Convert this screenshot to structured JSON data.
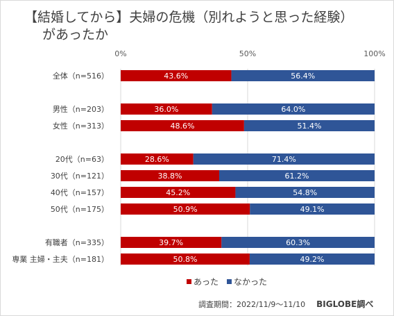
{
  "title_line1": "【結婚してから】夫婦の危機（別れようと思った経験）",
  "title_line2": "があったか",
  "survey_period": "調査期間：2022/11/9～11/10",
  "source": "BIGLOBE調べ",
  "colors": {
    "atta": "#c00000",
    "nakatta": "#2f5597"
  },
  "chart_data": {
    "type": "bar",
    "orientation": "horizontal-stacked-100",
    "title": "【結婚してから】夫婦の危機（別れようと思った経験）があったか",
    "xlim": [
      0,
      100
    ],
    "ticks": [
      "0%",
      "50%",
      "100%"
    ],
    "tick_values": [
      0,
      50,
      100
    ],
    "legend_position": "bottom",
    "categories": [
      "全体（n=516）",
      "男性（n=203）",
      "女性（n=313）",
      "20代（n=63）",
      "30代（n=121）",
      "40代（n=157）",
      "50代（n=175）",
      "有職者（n=335）",
      "専業 主婦・主夫（n=181）"
    ],
    "groups": [
      [
        0
      ],
      [
        1,
        2
      ],
      [
        3,
        4,
        5,
        6
      ],
      [
        7,
        8
      ]
    ],
    "series": [
      {
        "name": "あった",
        "color": "#c00000",
        "values": [
          43.6,
          36.0,
          48.6,
          28.6,
          38.8,
          45.2,
          50.9,
          39.7,
          50.8
        ],
        "labels": [
          "43.6%",
          "36.0%",
          "48.6%",
          "28.6%",
          "38.8%",
          "45.2%",
          "50.9%",
          "39.7%",
          "50.8%"
        ]
      },
      {
        "name": "なかった",
        "color": "#2f5597",
        "values": [
          56.4,
          64.0,
          51.4,
          71.4,
          61.2,
          54.8,
          49.1,
          60.3,
          49.2
        ],
        "labels": [
          "56.4%",
          "64.0%",
          "51.4%",
          "71.4%",
          "61.2%",
          "54.8%",
          "49.1%",
          "60.3%",
          "49.2%"
        ]
      }
    ]
  }
}
